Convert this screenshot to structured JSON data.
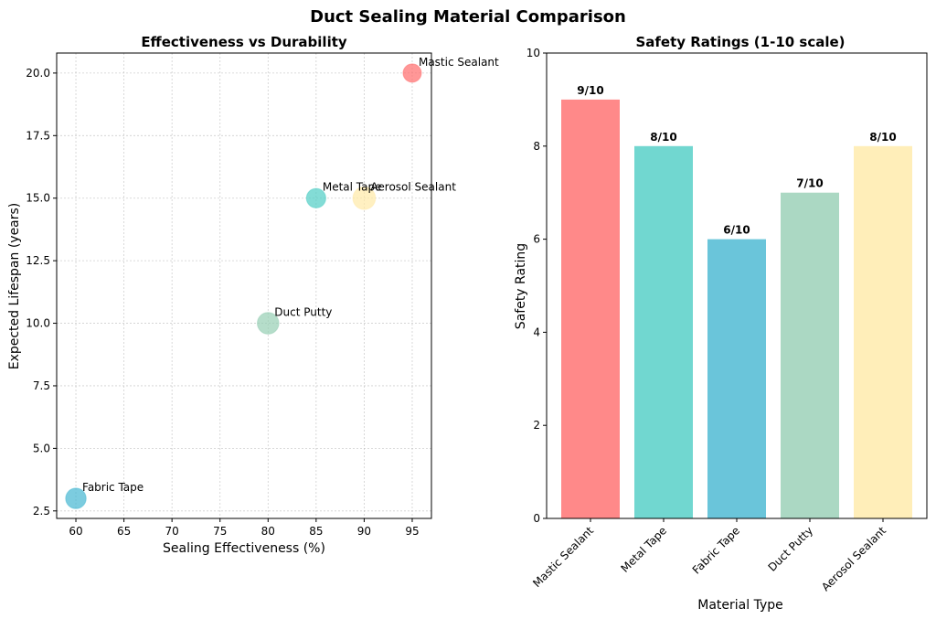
{
  "suptitle": "Duct Sealing Material Comparison",
  "chart_data": [
    {
      "type": "scatter",
      "title": "Effectiveness vs Durability",
      "xlabel": "Sealing Effectiveness (%)",
      "ylabel": "Expected Lifespan (years)",
      "xlim": [
        58,
        97
      ],
      "ylim": [
        2.2,
        20.8
      ],
      "xticks": [
        60,
        65,
        70,
        75,
        80,
        85,
        90,
        95
      ],
      "yticks": [
        2.5,
        5.0,
        7.5,
        10.0,
        12.5,
        15.0,
        17.5,
        20.0
      ],
      "grid": true,
      "points": [
        {
          "label": "Mastic Sealant",
          "x": 95,
          "y": 20,
          "color": "#FF6B6B"
        },
        {
          "label": "Metal Tape",
          "x": 85,
          "y": 15,
          "color": "#4ECDC4"
        },
        {
          "label": "Fabric Tape",
          "x": 60,
          "y": 3,
          "color": "#45B7D1"
        },
        {
          "label": "Duct Putty",
          "x": 80,
          "y": 10,
          "color": "#96CEB4"
        },
        {
          "label": "Aerosol Sealant",
          "x": 90,
          "y": 15,
          "color": "#FFEAA7"
        }
      ]
    },
    {
      "type": "bar",
      "title": "Safety Ratings (1-10 scale)",
      "xlabel": "Material Type",
      "ylabel": "Safety Rating",
      "ylim": [
        0,
        10
      ],
      "yticks": [
        0,
        2,
        4,
        6,
        8,
        10
      ],
      "categories": [
        "Mastic Sealant",
        "Metal Tape",
        "Fabric Tape",
        "Duct Putty",
        "Aerosol Sealant"
      ],
      "values": [
        9,
        8,
        6,
        7,
        8
      ],
      "value_labels": [
        "9/10",
        "8/10",
        "6/10",
        "7/10",
        "8/10"
      ],
      "colors": [
        "#FF6B6B",
        "#4ECDC4",
        "#45B7D1",
        "#96CEB4",
        "#FFEAA7"
      ]
    }
  ]
}
